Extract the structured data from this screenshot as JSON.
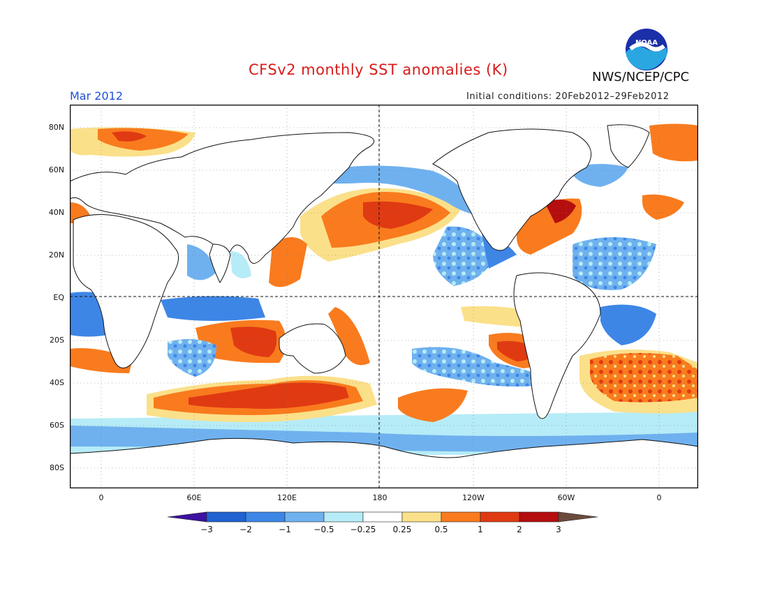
{
  "header": {
    "title": "CFSv2 monthly SST anomalies (K)",
    "agency": "NWS/NCEP/CPC",
    "month": "Mar 2012",
    "initial_conditions": "Initial conditions: 20Feb2012–29Feb2012",
    "logo_text": "NOAA"
  },
  "map": {
    "lat_ticks": [
      "80N",
      "60N",
      "40N",
      "20N",
      "EQ",
      "20S",
      "40S",
      "60S",
      "80S"
    ],
    "lon_ticks": [
      "0",
      "60E",
      "120E",
      "180",
      "120W",
      "60W",
      "0"
    ]
  },
  "colorbar": {
    "labels": [
      "−3",
      "−2",
      "−1",
      "−0.5",
      "−0.25",
      "0.25",
      "0.5",
      "1",
      "2",
      "3"
    ],
    "colors": [
      "#3c12a0",
      "#1f62d0",
      "#3d86e6",
      "#6fb1ef",
      "#b6ecf7",
      "#ffffff",
      "#fbe08a",
      "#f97b1e",
      "#e03a12",
      "#b40e0e",
      "#6b4a3c"
    ]
  }
}
